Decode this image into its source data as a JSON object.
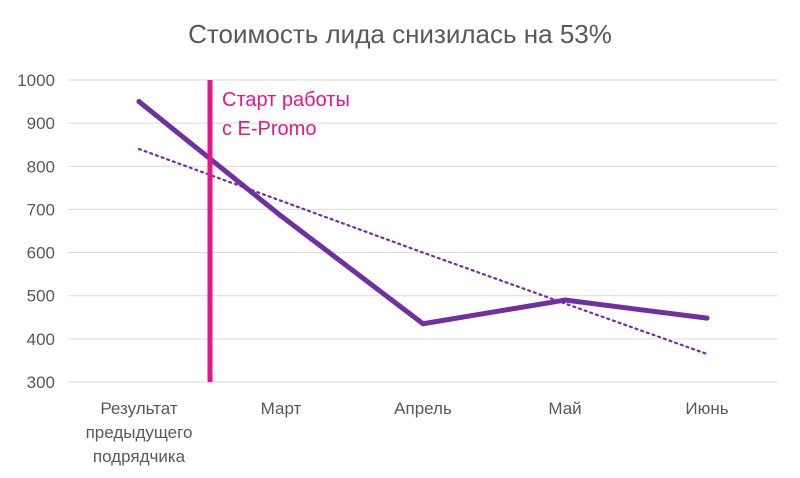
{
  "chart_data": {
    "type": "line",
    "title": "Стоимость лида снизилась на 53%",
    "xlabel": "",
    "ylabel": "",
    "categories": [
      [
        "Результат",
        "предыдущего",
        "подрядчика"
      ],
      [
        "Март"
      ],
      [
        "Апрель"
      ],
      [
        "Май"
      ],
      [
        "Июнь"
      ]
    ],
    "values": [
      950,
      685,
      435,
      490,
      448
    ],
    "trendline": [
      840,
      720,
      600,
      482,
      365
    ],
    "ylim": [
      300,
      1000
    ],
    "yticks": [
      1000,
      900,
      800,
      700,
      600,
      500,
      400,
      300
    ],
    "grid": true,
    "legend": "none",
    "annotation": {
      "lines": [
        "Старт работы",
        "с E-Promo"
      ],
      "position_between": [
        0,
        1
      ]
    },
    "colors": {
      "series": "#7030a0",
      "trendline": "#7030a0",
      "marker": "#e6168a",
      "grid": "#d9d9d9",
      "text": "#595959"
    }
  }
}
